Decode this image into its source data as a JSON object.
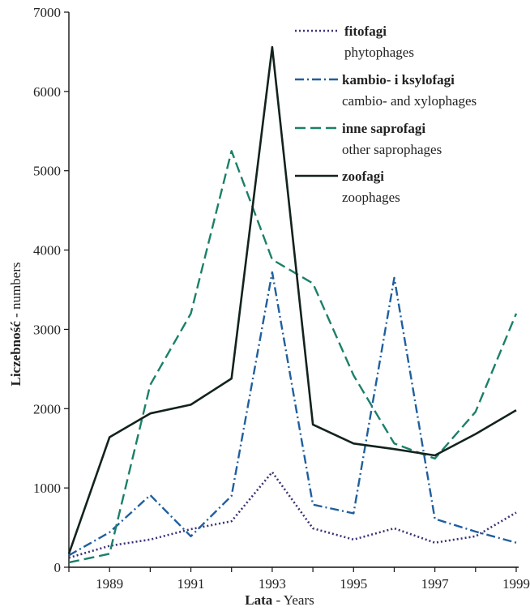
{
  "chart_data": {
    "type": "line",
    "xlabel": {
      "bold": "Lata",
      "normal": " - Years"
    },
    "ylabel": {
      "bold": "Liczebność",
      "normal": " - numbers"
    },
    "x": [
      1988,
      1989,
      1990,
      1991,
      1992,
      1993,
      1994,
      1995,
      1996,
      1997,
      1998,
      1999
    ],
    "x_ticks": [
      1989,
      1991,
      1993,
      1995,
      1997,
      1999
    ],
    "y_ticks": [
      0,
      1000,
      2000,
      3000,
      4000,
      5000,
      6000,
      7000
    ],
    "xlim": [
      1988,
      1999
    ],
    "ylim": [
      0,
      7000
    ],
    "grid": false,
    "legend_position": "top-right",
    "series": [
      {
        "name": "fitofagi",
        "name_en": "phytophages",
        "color": "#3b3275",
        "style": "dotted",
        "values": [
          120,
          270,
          350,
          480,
          580,
          1200,
          490,
          350,
          490,
          310,
          390,
          690
        ]
      },
      {
        "name": "kambio- i ksylofagi",
        "name_en": "cambio- and xylophages",
        "color": "#1f5f9e",
        "style": "dash-dot",
        "values": [
          150,
          440,
          910,
          390,
          900,
          3720,
          790,
          680,
          3650,
          610,
          450,
          310
        ]
      },
      {
        "name": "inne saprofagi",
        "name_en": "other saprophages",
        "color": "#1b8068",
        "style": "dashed",
        "values": [
          60,
          170,
          2300,
          3200,
          5250,
          3880,
          3580,
          2420,
          1560,
          1370,
          1960,
          3200
        ]
      },
      {
        "name": "zoofagi",
        "name_en": "zoophages",
        "color": "#12231e",
        "style": "solid",
        "values": [
          170,
          1640,
          1940,
          2050,
          2380,
          6560,
          1800,
          1560,
          1490,
          1410,
          1680,
          1980
        ]
      }
    ]
  }
}
